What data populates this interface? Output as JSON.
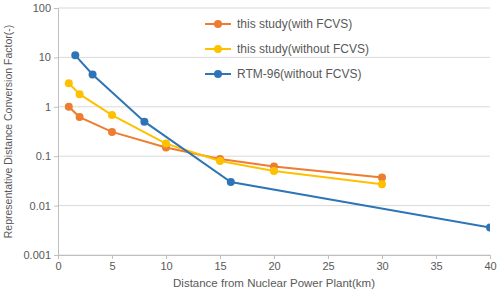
{
  "chart_data": {
    "type": "line",
    "x_label": "Distance from Nuclear Power Plant(km)",
    "y_label": "Representative Distance Conversion Factor(-)",
    "log": "y",
    "grid": true,
    "legend": "upper right",
    "xlim": [
      0,
      40
    ],
    "xticks": [
      0,
      5,
      10,
      15,
      20,
      25,
      30,
      35,
      40
    ],
    "ylim": [
      0.001,
      100
    ],
    "yticks": [
      0.001,
      0.01,
      0.1,
      1,
      10,
      100
    ],
    "series": [
      {
        "name": "this study(with FCVS)",
        "color": "#ed7d31",
        "marker": "circle",
        "line_style": "solid",
        "x": [
          1,
          2,
          5,
          10,
          15,
          20,
          30
        ],
        "values": [
          1.0,
          0.62,
          0.31,
          0.15,
          0.088,
          0.062,
          0.037
        ]
      },
      {
        "name": "this study(without FCVS)",
        "color": "#ffc000",
        "marker": "circle",
        "line_style": "solid",
        "x": [
          1,
          2,
          5,
          10,
          15,
          20,
          30
        ],
        "values": [
          3.0,
          1.8,
          0.68,
          0.18,
          0.08,
          0.05,
          0.027
        ]
      },
      {
        "name": "RTM-96(without FCVS)",
        "color": "#2e75b6",
        "marker": "circle",
        "line_style": "solid",
        "x": [
          1.6,
          3.2,
          8,
          16,
          40
        ],
        "values": [
          11,
          4.5,
          0.5,
          0.03,
          0.0036
        ]
      }
    ]
  }
}
